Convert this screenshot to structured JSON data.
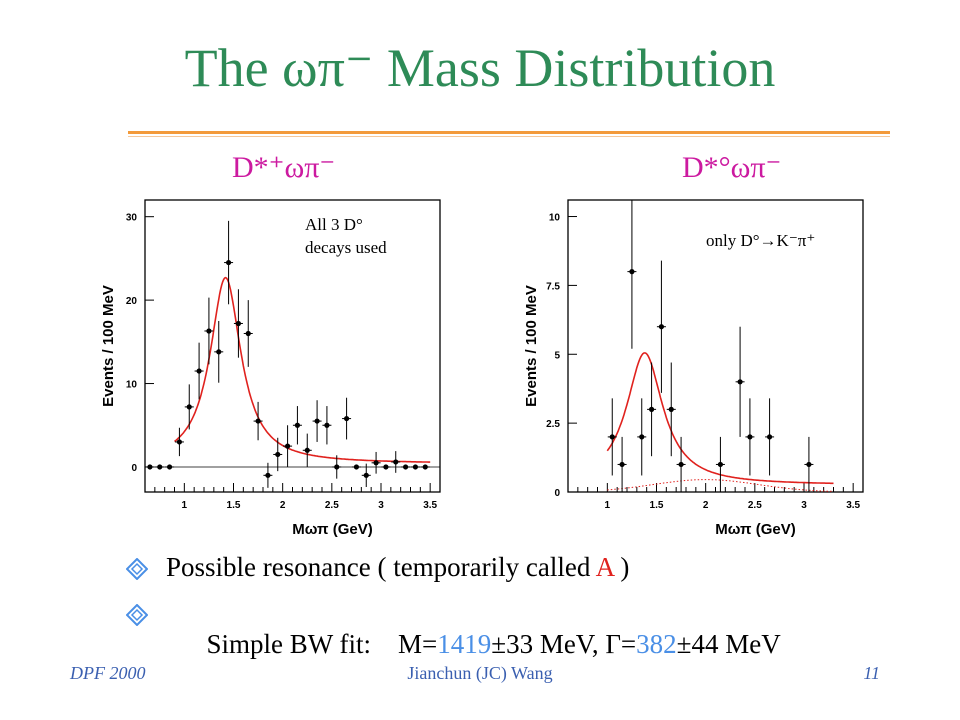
{
  "slide": {
    "title": "The ωπ⁻ Mass Distribution",
    "bullets": [
      {
        "parts": [
          {
            "text": "Possible resonance ( temporarily called ",
            "style": "normal"
          },
          {
            "text": "A",
            "style": "red"
          },
          {
            "text": " )",
            "style": "normal"
          }
        ]
      },
      {
        "parts": [
          {
            "text": "Simple BW fit:    M=",
            "style": "normal"
          },
          {
            "text": "1419",
            "style": "blue"
          },
          {
            "text": "±33 MeV, Γ=",
            "style": "normal"
          },
          {
            "text": "382",
            "style": "blue"
          },
          {
            "text": "±44 MeV",
            "style": "normal"
          }
        ]
      }
    ],
    "footer": {
      "left": "DPF 2000",
      "center": "Jianchun (JC) Wang",
      "right": "11"
    }
  },
  "colors": {
    "title": "#2e8b57",
    "rule": "#f39a3a",
    "label": "#cc1aa0",
    "fit": "#e0221e",
    "highlight_red": "#e0221e",
    "highlight_blue": "#4a8fe6",
    "footer": "#3a5fb0"
  },
  "chart_data": [
    {
      "type": "scatter",
      "label": "D*⁺ωπ⁻",
      "annotation": [
        "All 3 D°",
        "decays used"
      ],
      "xlabel": "Mωπ (GeV)",
      "ylabel": "Events / 100 MeV",
      "xlim": [
        0.6,
        3.6
      ],
      "ylim": [
        -3,
        32
      ],
      "xticks": [
        1,
        1.5,
        2,
        2.5,
        3,
        3.5
      ],
      "yticks": [
        0,
        10,
        20,
        30
      ],
      "points": [
        {
          "x": 0.65,
          "y": 0,
          "err": 0
        },
        {
          "x": 0.75,
          "y": 0,
          "err": 0
        },
        {
          "x": 0.85,
          "y": 0,
          "err": 0
        },
        {
          "x": 0.95,
          "y": 3,
          "err": 1.7
        },
        {
          "x": 1.05,
          "y": 7.2,
          "err": 2.7
        },
        {
          "x": 1.15,
          "y": 11.5,
          "err": 3.4
        },
        {
          "x": 1.25,
          "y": 16.3,
          "err": 4
        },
        {
          "x": 1.35,
          "y": 13.8,
          "err": 3.7
        },
        {
          "x": 1.45,
          "y": 24.5,
          "err": 5
        },
        {
          "x": 1.55,
          "y": 17.2,
          "err": 4.1
        },
        {
          "x": 1.65,
          "y": 16,
          "err": 4
        },
        {
          "x": 1.75,
          "y": 5.5,
          "err": 2.3
        },
        {
          "x": 1.85,
          "y": -1,
          "err": 1.5
        },
        {
          "x": 1.95,
          "y": 1.5,
          "err": 2
        },
        {
          "x": 2.05,
          "y": 2.5,
          "err": 2.5
        },
        {
          "x": 2.15,
          "y": 5,
          "err": 2.3
        },
        {
          "x": 2.25,
          "y": 2,
          "err": 2
        },
        {
          "x": 2.35,
          "y": 5.5,
          "err": 2.5
        },
        {
          "x": 2.45,
          "y": 5,
          "err": 2.3
        },
        {
          "x": 2.55,
          "y": 0,
          "err": 1.4
        },
        {
          "x": 2.65,
          "y": 5.8,
          "err": 2.5
        },
        {
          "x": 2.75,
          "y": 0,
          "err": 0
        },
        {
          "x": 2.85,
          "y": -1,
          "err": 1.4
        },
        {
          "x": 2.95,
          "y": 0.5,
          "err": 1.3
        },
        {
          "x": 3.05,
          "y": 0,
          "err": 0
        },
        {
          "x": 3.15,
          "y": 0.6,
          "err": 1.3
        },
        {
          "x": 3.25,
          "y": 0,
          "err": 0
        },
        {
          "x": 3.35,
          "y": 0,
          "err": 0
        },
        {
          "x": 3.45,
          "y": 0,
          "err": 0
        }
      ],
      "fit": {
        "kind": "breit-wigner",
        "mass": 1.419,
        "width": 0.382,
        "peak": 22.3,
        "background": 0.4,
        "xrange": [
          0.9,
          3.5
        ]
      },
      "zero_line": true
    },
    {
      "type": "scatter",
      "label": "D*°ωπ⁻",
      "annotation": [
        "only D°→K⁻π⁺"
      ],
      "xlabel": "Mωπ (GeV)",
      "ylabel": "Events / 100 MeV",
      "xlim": [
        0.6,
        3.6
      ],
      "ylim": [
        0,
        10.6
      ],
      "xticks": [
        1,
        1.5,
        2,
        2.5,
        3,
        3.5
      ],
      "yticks": [
        0,
        2.5,
        5,
        7.5,
        10
      ],
      "ytick_labels": [
        "0",
        "2.5",
        "5",
        "7.5",
        "10"
      ],
      "points": [
        {
          "x": 1.05,
          "y": 2,
          "err": 1.4
        },
        {
          "x": 1.15,
          "y": 1,
          "err": 1
        },
        {
          "x": 1.25,
          "y": 8,
          "err": 2.8
        },
        {
          "x": 1.35,
          "y": 2,
          "err": 1.4
        },
        {
          "x": 1.45,
          "y": 3,
          "err": 1.7
        },
        {
          "x": 1.55,
          "y": 6,
          "err": 2.4
        },
        {
          "x": 1.65,
          "y": 3,
          "err": 1.7
        },
        {
          "x": 1.75,
          "y": 1,
          "err": 1
        },
        {
          "x": 2.15,
          "y": 1,
          "err": 1
        },
        {
          "x": 2.35,
          "y": 4,
          "err": 2
        },
        {
          "x": 2.45,
          "y": 2,
          "err": 1.4
        },
        {
          "x": 2.65,
          "y": 2,
          "err": 1.4
        },
        {
          "x": 3.05,
          "y": 1,
          "err": 1
        }
      ],
      "fit": {
        "kind": "breit-wigner",
        "mass": 1.38,
        "width": 0.45,
        "peak": 4.8,
        "background": 0.25,
        "xrange": [
          1.0,
          3.3
        ]
      },
      "background_curve": {
        "kind": "dotted",
        "xrange": [
          1.0,
          3.3
        ],
        "peak_x": 2.0,
        "peak_y": 0.45
      }
    }
  ]
}
